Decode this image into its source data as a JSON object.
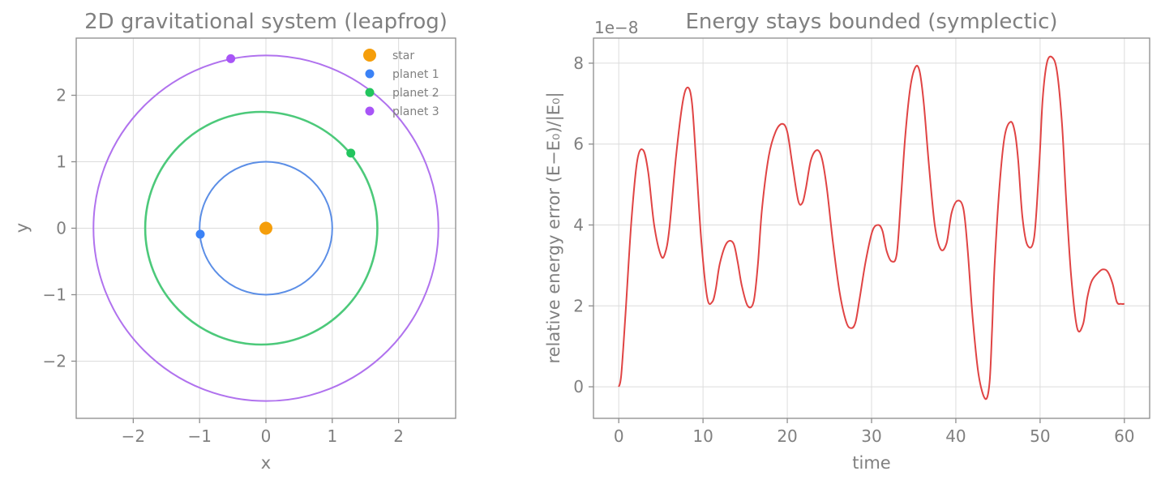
{
  "chart_data": [
    {
      "type": "scatter",
      "title": "2D gravitational system (leapfrog)",
      "xlabel": "x",
      "ylabel": "y",
      "xlim": [
        -2.86,
        2.86
      ],
      "ylim": [
        -2.86,
        2.86
      ],
      "xticks": [
        -2,
        -1,
        0,
        1,
        2
      ],
      "yticks": [
        -2,
        -1,
        0,
        1,
        2
      ],
      "xtick_labels": [
        "−2",
        "−1",
        "0",
        "1",
        "2"
      ],
      "ytick_labels": [
        "−2",
        "−1",
        "0",
        "1",
        "2"
      ],
      "grid": true,
      "legend_position": "top-right",
      "orbits": [
        {
          "color": "#5b8ee6",
          "center": [
            0,
            0
          ],
          "rx": 1.0,
          "ry": 1.0
        },
        {
          "color": "#4cc97a",
          "center": [
            -0.07,
            0
          ],
          "rx": 1.75,
          "ry": 1.75
        },
        {
          "color": "#b072ee",
          "center": [
            0,
            0
          ],
          "rx": 2.6,
          "ry": 2.6
        }
      ],
      "series": [
        {
          "name": "star",
          "color": "#f59e0b",
          "x": [
            0.0
          ],
          "y": [
            0.0
          ],
          "size": "large"
        },
        {
          "name": "planet 1",
          "color": "#3b82f6",
          "x": [
            -0.99
          ],
          "y": [
            -0.09
          ],
          "size": "small"
        },
        {
          "name": "planet 2",
          "color": "#22c55e",
          "x": [
            1.28
          ],
          "y": [
            1.13
          ],
          "size": "small"
        },
        {
          "name": "planet 3",
          "color": "#a855f7",
          "x": [
            -0.53
          ],
          "y": [
            2.55
          ],
          "size": "small"
        }
      ]
    },
    {
      "type": "line",
      "title": "Energy stays bounded (symplectic)",
      "xlabel": "time",
      "ylabel": "relative energy error  (E−E₀)/|E₀|",
      "offset_text": "1e−8",
      "xlim": [
        -3,
        63
      ],
      "ylim": [
        -0.78,
        8.62
      ],
      "xticks": [
        0,
        10,
        20,
        30,
        40,
        50,
        60
      ],
      "yticks": [
        0,
        2,
        4,
        6,
        8
      ],
      "grid": true,
      "series": [
        {
          "color": "#e04444",
          "x": [
            0,
            0.3,
            0.8,
            1.5,
            2.2,
            2.9,
            3.5,
            4.2,
            5.0,
            5.5,
            6.0,
            6.8,
            7.6,
            8.2,
            8.7,
            9.2,
            9.8,
            10.5,
            11.1,
            11.5,
            12.0,
            12.8,
            13.6,
            14.1,
            14.6,
            15.3,
            16.0,
            16.5,
            17.0,
            17.8,
            18.6,
            19.4,
            20.0,
            20.6,
            21.3,
            21.8,
            22.2,
            22.8,
            23.5,
            24.1,
            24.7,
            25.4,
            26.2,
            27.0,
            27.6,
            28.1,
            28.6,
            29.3,
            30.1,
            30.8,
            31.3,
            31.8,
            32.4,
            33.0,
            33.5,
            34.0,
            34.6,
            35.2,
            35.7,
            36.2,
            36.8,
            37.5,
            38.2,
            38.9,
            39.5,
            40.2,
            40.9,
            41.4,
            42.0,
            42.7,
            43.5,
            44.0,
            44.3,
            44.6,
            45.2,
            45.8,
            46.5,
            47.0,
            47.4,
            47.9,
            48.5,
            49.3,
            49.9,
            50.3,
            50.8,
            51.4,
            52.0,
            52.6,
            53.1,
            53.7,
            54.4,
            55.1,
            55.6,
            56.1,
            56.8,
            57.4,
            58.0,
            58.6,
            59.1,
            59.6,
            60.0
          ],
          "y": [
            0.0,
            0.3,
            1.8,
            4.1,
            5.6,
            5.85,
            5.3,
            4.0,
            3.25,
            3.3,
            3.9,
            5.7,
            7.05,
            7.4,
            7.0,
            5.5,
            3.6,
            2.2,
            2.1,
            2.4,
            3.05,
            3.55,
            3.55,
            3.1,
            2.5,
            2.0,
            2.1,
            3.0,
            4.4,
            5.7,
            6.3,
            6.5,
            6.3,
            5.5,
            4.6,
            4.55,
            4.9,
            5.6,
            5.85,
            5.65,
            4.9,
            3.6,
            2.35,
            1.6,
            1.45,
            1.6,
            2.2,
            3.1,
            3.85,
            4.0,
            3.85,
            3.35,
            3.1,
            3.3,
            4.7,
            6.2,
            7.4,
            7.9,
            7.8,
            7.0,
            5.5,
            4.0,
            3.4,
            3.55,
            4.3,
            4.6,
            4.4,
            3.4,
            1.7,
            0.3,
            -0.3,
            0.1,
            1.4,
            3.0,
            5.0,
            6.2,
            6.55,
            6.3,
            5.6,
            4.2,
            3.5,
            3.7,
            5.5,
            7.1,
            8.0,
            8.15,
            7.8,
            6.5,
            4.6,
            2.7,
            1.45,
            1.55,
            2.2,
            2.6,
            2.8,
            2.9,
            2.85,
            2.55,
            2.1,
            2.05,
            2.05
          ]
        }
      ]
    }
  ]
}
